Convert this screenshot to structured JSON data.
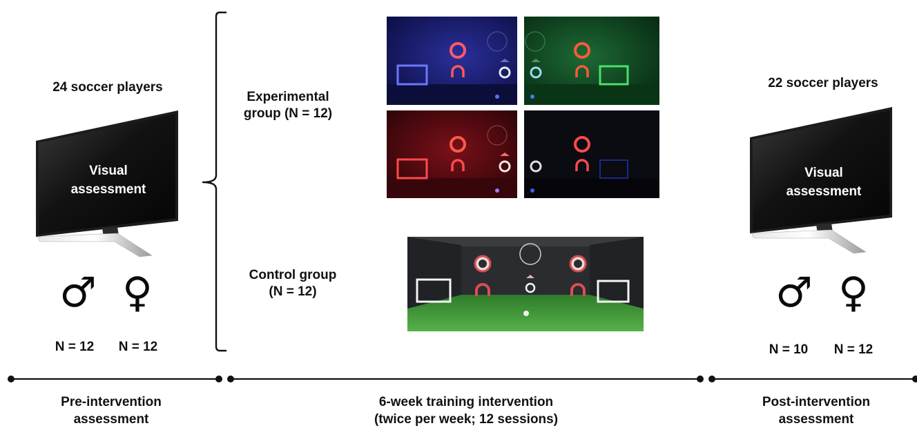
{
  "pre": {
    "players": "24 soccer players",
    "tv_text": [
      "Visual",
      "assessment"
    ],
    "male_n": "N = 12",
    "female_n": "N = 12",
    "label": [
      "Pre-intervention",
      "assessment"
    ]
  },
  "groups": {
    "experimental": [
      "Experimental",
      "group (N = 12)"
    ],
    "control": [
      "Control group",
      "(N = 12)"
    ]
  },
  "intervention": {
    "label": [
      "6-week training intervention",
      "(twice per week; 12 sessions)"
    ]
  },
  "post": {
    "players": "22 soccer players",
    "tv_text": [
      "Visual",
      "assessment"
    ],
    "male_n": "N = 10",
    "female_n": "N = 12",
    "label": [
      "Post-intervention",
      "assessment"
    ]
  },
  "symbols": {
    "male": "♂",
    "female": "♀"
  },
  "colors": {
    "panel_blue": "#1a1f78",
    "panel_green": "#0f4a22",
    "panel_red": "#5a0c12",
    "panel_dark": "#0c0c14",
    "field_green": "#3f9a3a",
    "ring_red": "#ff4a4a"
  }
}
